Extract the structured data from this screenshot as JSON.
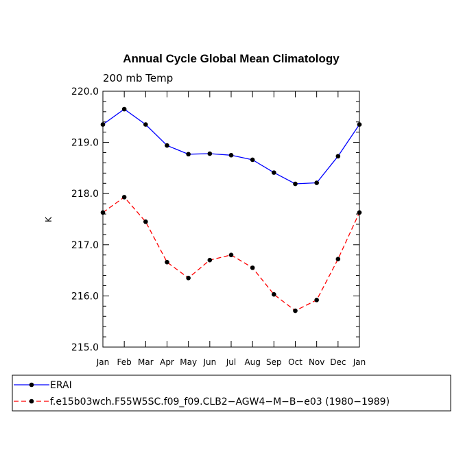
{
  "chart_data": {
    "type": "line",
    "title": "Annual Cycle Global Mean Climatology",
    "subtitle": "200 mb Temp",
    "xlabel": "",
    "ylabel": "K",
    "categories": [
      "Jan",
      "Feb",
      "Mar",
      "Apr",
      "May",
      "Jun",
      "Jul",
      "Aug",
      "Sep",
      "Oct",
      "Nov",
      "Dec",
      "Jan"
    ],
    "ylim": [
      215.0,
      220.0
    ],
    "yticks": [
      "215.0",
      "216.0",
      "217.0",
      "218.0",
      "219.0",
      "220.0"
    ],
    "grid": false,
    "legend_position": "bottom",
    "series": [
      {
        "name": "ERAI",
        "color": "#0000ff",
        "dash": "solid",
        "values": [
          219.35,
          219.65,
          219.35,
          218.94,
          218.77,
          218.78,
          218.75,
          218.66,
          218.41,
          218.19,
          218.21,
          218.73,
          219.35
        ]
      },
      {
        "name": "f.e15b03wch.F55W5SC.f09_f09.CLB2−AGW4−M−B−e03 (1980−1989)",
        "color": "#ff0000",
        "dash": "dashed",
        "values": [
          217.63,
          217.93,
          217.45,
          216.66,
          216.35,
          216.7,
          216.8,
          216.55,
          216.03,
          215.71,
          215.92,
          216.72,
          217.63
        ]
      }
    ]
  }
}
